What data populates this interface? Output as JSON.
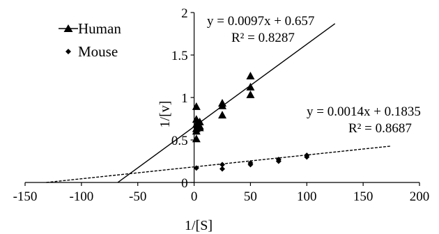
{
  "chart_data": {
    "type": "scatter",
    "title": "",
    "xlabel": "1/[S]",
    "ylabel": "1/[v]",
    "xlim": [
      -150,
      200
    ],
    "ylim": [
      0,
      2
    ],
    "xticks": [
      -150,
      -100,
      -50,
      0,
      50,
      100,
      150,
      200
    ],
    "xtick_labels": [
      "-150",
      "-100",
      "-50",
      "0",
      "50",
      "100",
      "150",
      "200"
    ],
    "yticks": [
      0,
      0.5,
      1,
      1.5,
      2
    ],
    "ytick_labels": [
      "0",
      "0.5",
      "1",
      "1.5",
      "2"
    ],
    "grid": false,
    "legend_position": "top-left",
    "series": [
      {
        "name": "Human",
        "marker": "triangle",
        "color": "#000000",
        "x": [
          2,
          2,
          2,
          2,
          2,
          2,
          5,
          5,
          5,
          25,
          25,
          25,
          50,
          50,
          50
        ],
        "y": [
          0.89,
          0.74,
          0.68,
          0.63,
          0.6,
          0.51,
          0.71,
          0.66,
          0.64,
          0.93,
          0.9,
          0.79,
          1.25,
          1.12,
          1.03
        ],
        "trendline": {
          "slope": 0.0097,
          "intercept": 0.657,
          "x_range": [
            -67.7,
            125
          ],
          "style": "solid",
          "equation": "y = 0.0097x + 0.657",
          "r2": "R² = 0.8287"
        }
      },
      {
        "name": "Mouse",
        "marker": "diamond",
        "color": "#000000",
        "x": [
          2,
          25,
          25,
          50,
          50,
          75,
          75,
          100,
          100
        ],
        "y": [
          0.17,
          0.21,
          0.16,
          0.23,
          0.21,
          0.27,
          0.25,
          0.32,
          0.3
        ],
        "trendline": {
          "slope": 0.0014,
          "intercept": 0.1835,
          "x_range": [
            -131.1,
            175
          ],
          "style": "dashed",
          "equation": "y = 0.0014x + 0.1835",
          "r2": "R² = 0.8687"
        }
      }
    ]
  }
}
